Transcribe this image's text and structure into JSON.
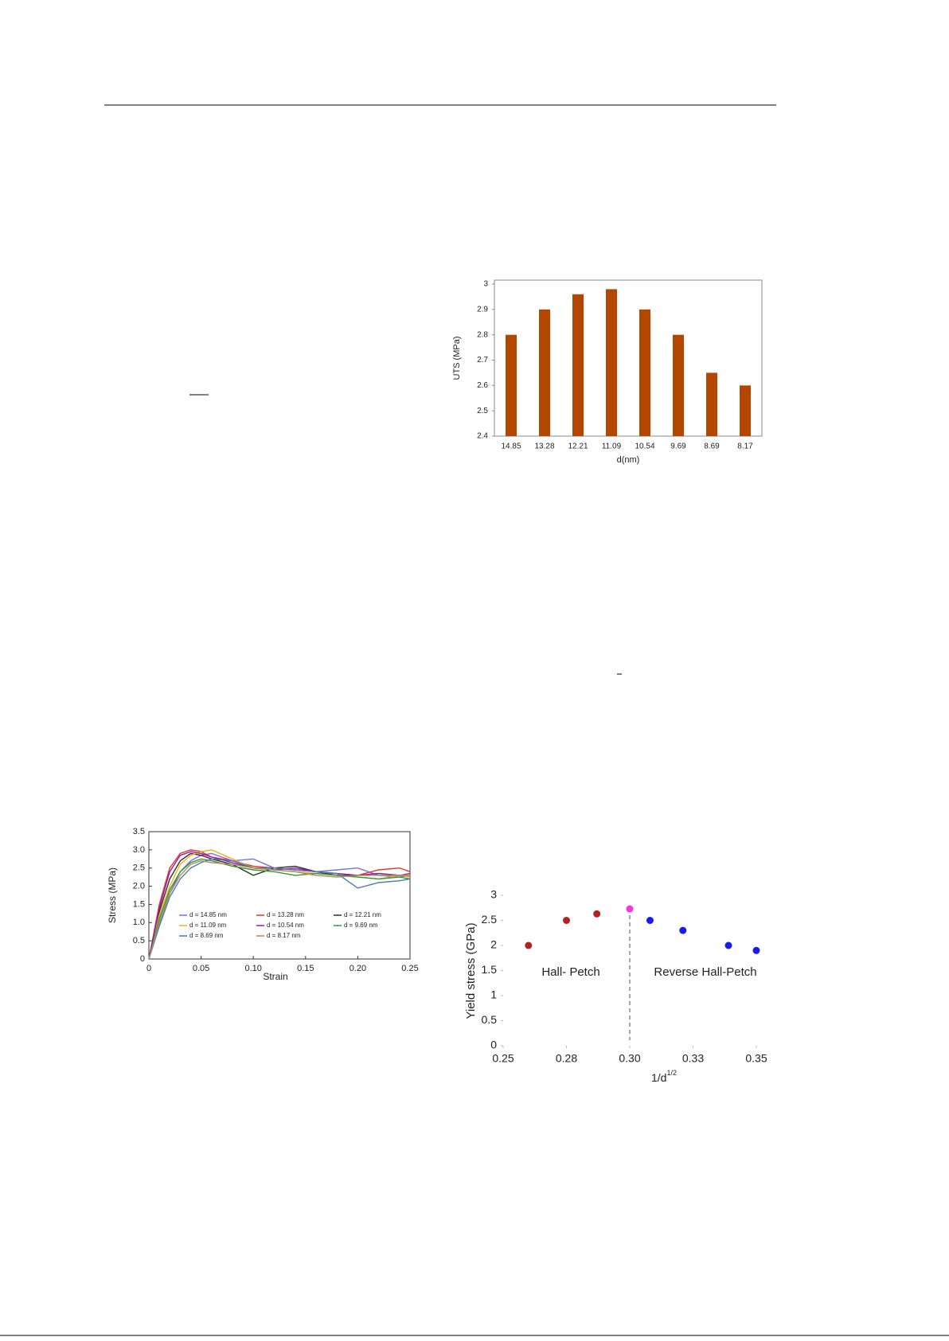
{
  "chart_data": [
    {
      "type": "bar",
      "x_label": "d(nm)",
      "y_label": "UTS (MPa)",
      "color": "#b34700",
      "categories": [
        "14.85",
        "13.28",
        "12.21",
        "11.09",
        "10.54",
        "9.69",
        "8.69",
        "8.17"
      ],
      "values": [
        2.8,
        2.9,
        2.96,
        2.98,
        2.9,
        2.8,
        2.65,
        2.6
      ],
      "ylim": [
        2.4,
        3
      ],
      "yticks": [
        2.4,
        2.5,
        2.6,
        2.7,
        2.8,
        2.9,
        3
      ]
    },
    {
      "type": "line",
      "x_label": "Strain",
      "y_label": "Stress (MPa)",
      "x": [
        0,
        0.01,
        0.02,
        0.03,
        0.04,
        0.05,
        0.06,
        0.08,
        0.1,
        0.12,
        0.14,
        0.16,
        0.18,
        0.2,
        0.22,
        0.24,
        0.25
      ],
      "series": [
        {
          "name": "d = 14.85 nm",
          "color": "#7b6fe0",
          "values": [
            0,
            1.0,
            1.8,
            2.4,
            2.7,
            2.85,
            2.9,
            2.7,
            2.75,
            2.5,
            2.45,
            2.4,
            2.45,
            2.5,
            2.3,
            2.25,
            2.3
          ]
        },
        {
          "name": "d = 13.28 nm",
          "color": "#e8332a",
          "values": [
            0,
            1.5,
            2.5,
            2.9,
            3.0,
            2.95,
            2.8,
            2.7,
            2.55,
            2.5,
            2.45,
            2.4,
            2.35,
            2.3,
            2.45,
            2.5,
            2.4
          ]
        },
        {
          "name": "d = 12.21 nm",
          "color": "#3a2a22",
          "values": [
            0,
            1.3,
            2.2,
            2.7,
            2.9,
            2.85,
            2.75,
            2.6,
            2.3,
            2.5,
            2.55,
            2.4,
            2.3,
            2.3,
            2.35,
            2.3,
            2.25
          ]
        },
        {
          "name": "d = 11.09 nm",
          "color": "#f0b020",
          "values": [
            0,
            1.2,
            2.0,
            2.6,
            2.85,
            2.95,
            3.0,
            2.75,
            2.5,
            2.45,
            2.4,
            2.35,
            2.3,
            2.25,
            2.2,
            2.3,
            2.25
          ]
        },
        {
          "name": "d = 10.54 nm",
          "color": "#8a1fb0",
          "values": [
            0,
            1.4,
            2.4,
            2.85,
            2.95,
            2.9,
            2.8,
            2.65,
            2.5,
            2.45,
            2.5,
            2.4,
            2.35,
            2.3,
            2.35,
            2.3,
            2.35
          ]
        },
        {
          "name": "d = 9.69 nm",
          "color": "#2f9a2f",
          "values": [
            0,
            1.1,
            1.9,
            2.4,
            2.65,
            2.75,
            2.7,
            2.55,
            2.45,
            2.4,
            2.3,
            2.35,
            2.3,
            2.25,
            2.2,
            2.25,
            2.2
          ]
        },
        {
          "name": "d = 8.69 nm",
          "color": "#4a78b8",
          "values": [
            0,
            0.9,
            1.7,
            2.2,
            2.5,
            2.65,
            2.75,
            2.7,
            2.5,
            2.5,
            2.45,
            2.4,
            2.35,
            1.95,
            2.1,
            2.15,
            2.2
          ]
        },
        {
          "name": "d = 8.17 nm",
          "color": "#b08a5a",
          "values": [
            0,
            1.0,
            1.8,
            2.3,
            2.6,
            2.7,
            2.65,
            2.6,
            2.5,
            2.45,
            2.4,
            2.3,
            2.25,
            2.3,
            2.3,
            2.3,
            2.3
          ]
        }
      ],
      "xlim": [
        0,
        0.25
      ],
      "xticks": [
        0,
        0.05,
        {
          "value": 0.1,
          "label": "0.10"
        },
        0.15,
        {
          "value": 0.2,
          "label": "0.20"
        },
        0.25
      ],
      "ylim": [
        0,
        3.5
      ],
      "yticks": [
        0,
        0.5,
        {
          "value": 1,
          "label": "1.0"
        },
        1.5,
        {
          "value": 2,
          "label": "2.0"
        },
        2.5,
        {
          "value": 3,
          "label": "3.0"
        },
        3.5
      ]
    },
    {
      "type": "scatter",
      "x_label": {
        "base": "1/d",
        "sup": "1/2"
      },
      "y_label": "Yield stress (GPa)",
      "x": [
        0.26,
        0.275,
        0.287,
        0.3,
        0.308,
        0.321,
        0.339,
        0.35
      ],
      "values": [
        2.0,
        2.5,
        2.63,
        2.73,
        2.5,
        2.3,
        2.0,
        1.9
      ],
      "colors": [
        "#b22222",
        "#b22222",
        "#b22222",
        "#ff33dd",
        "#1a1aee",
        "#1a1aee",
        "#1a1aee",
        "#1a1aee"
      ],
      "reference_line_x": 0.3,
      "annotations": [
        "Hall- Petch",
        "Reverse Hall-Petch"
      ],
      "xlim": [
        0.25,
        0.35
      ],
      "xticks": [
        0.25,
        {
          "value": 0.275,
          "label": "0.28"
        },
        {
          "value": 0.3,
          "label": "0.30"
        },
        {
          "value": 0.325,
          "label": "0.33"
        },
        0.35
      ],
      "ylim": [
        0,
        3
      ],
      "yticks": [
        0,
        0.5,
        1,
        1.5,
        2,
        2.5,
        3
      ]
    }
  ]
}
